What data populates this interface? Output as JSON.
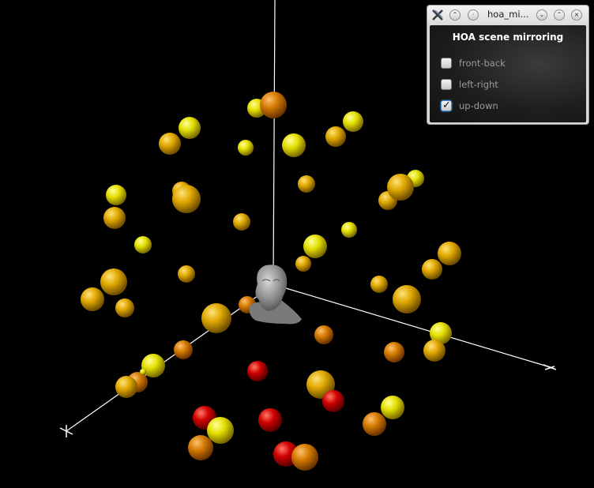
{
  "window": {
    "title": "hoa_mi...",
    "app_icon": "x-app-icon",
    "titlebar_buttons": [
      "shade-up-icon",
      "sticky-dot-icon",
      "minimize-icon",
      "maximize-icon",
      "close-icon"
    ]
  },
  "panel": {
    "title": "HOA scene mirroring",
    "options": [
      {
        "label": "front-back",
        "checked": false
      },
      {
        "label": "left-right",
        "checked": false
      },
      {
        "label": "up-down",
        "checked": true
      }
    ]
  },
  "scene": {
    "background": "#000000",
    "axis_color": "#ffffff",
    "sphere_colors": [
      "#e8e000",
      "#e0a800",
      "#d47800",
      "#cc0000"
    ]
  }
}
